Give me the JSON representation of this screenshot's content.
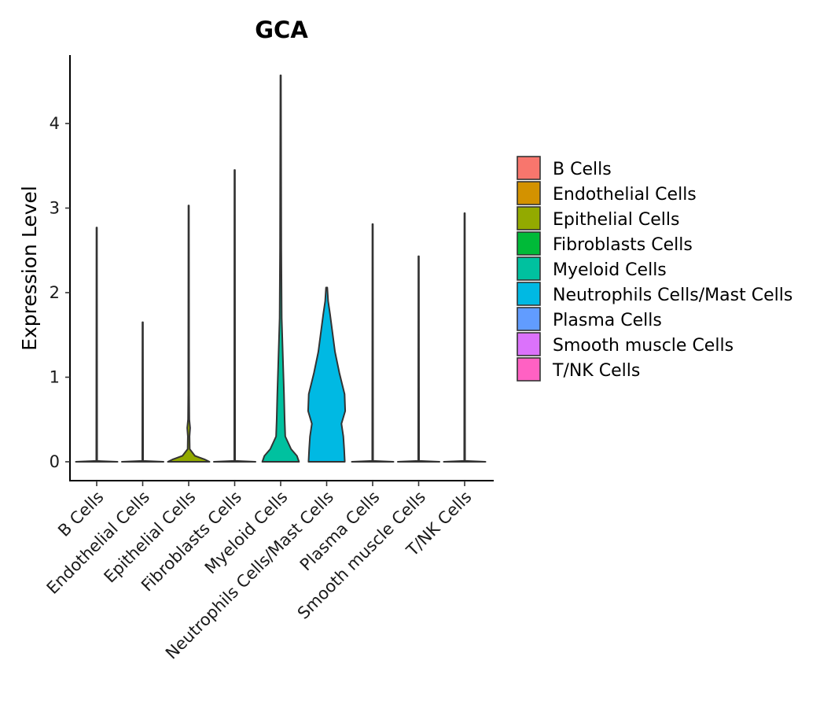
{
  "chart_data": {
    "type": "violin",
    "title": "GCA",
    "xlabel": "",
    "ylabel": "Expression Level",
    "ylim": [
      -0.22,
      4.8
    ],
    "yticks": [
      0,
      1,
      2,
      3,
      4
    ],
    "categories": [
      "B Cells",
      "Endothelial Cells",
      "Epithelial Cells",
      "Fibroblasts Cells",
      "Myeloid Cells",
      "Neutrophils Cells/Mast Cells",
      "Plasma Cells",
      "Smooth muscle Cells",
      "T/NK Cells"
    ],
    "legend": {
      "placement": "right",
      "entries": [
        "B Cells",
        "Endothelial Cells",
        "Epithelial Cells",
        "Fibroblasts Cells",
        "Myeloid Cells",
        "Neutrophils Cells/Mast Cells",
        "Plasma Cells",
        "Smooth muscle Cells",
        "T/NK Cells"
      ]
    },
    "colors": [
      "#F8766D",
      "#D39200",
      "#93AA00",
      "#00BA38",
      "#00C19F",
      "#00B9E3",
      "#619CFF",
      "#DB72FB",
      "#FF61C3"
    ],
    "series": [
      {
        "name": "B Cells",
        "max": 2.77,
        "density": [
          [
            0,
            1.0
          ],
          [
            0.01,
            0.02
          ],
          [
            2.77,
            0.012
          ]
        ]
      },
      {
        "name": "Endothelial Cells",
        "max": 1.65,
        "density": [
          [
            0,
            1.0
          ],
          [
            0.01,
            0.02
          ],
          [
            1.65,
            0.012
          ]
        ]
      },
      {
        "name": "Epithelial Cells",
        "max": 3.03,
        "density": [
          [
            0,
            1.0
          ],
          [
            0.03,
            0.75
          ],
          [
            0.07,
            0.3
          ],
          [
            0.15,
            0.05
          ],
          [
            0.3,
            0.04
          ],
          [
            0.4,
            0.07
          ],
          [
            0.5,
            0.03
          ],
          [
            0.8,
            0.02
          ],
          [
            3.03,
            0.012
          ]
        ]
      },
      {
        "name": "Fibroblasts Cells",
        "max": 3.45,
        "density": [
          [
            0,
            1.0
          ],
          [
            0.01,
            0.02
          ],
          [
            3.45,
            0.012
          ]
        ]
      },
      {
        "name": "Myeloid Cells",
        "max": 4.57,
        "density": [
          [
            0,
            0.88
          ],
          [
            0.07,
            0.78
          ],
          [
            0.15,
            0.5
          ],
          [
            0.3,
            0.22
          ],
          [
            0.5,
            0.19
          ],
          [
            0.8,
            0.16
          ],
          [
            1.2,
            0.11
          ],
          [
            1.7,
            0.05
          ],
          [
            2.5,
            0.03
          ],
          [
            4.57,
            0.012
          ]
        ]
      },
      {
        "name": "Neutrophils Cells/Mast Cells",
        "max": 2.06,
        "density": [
          [
            0,
            0.87
          ],
          [
            0.15,
            0.84
          ],
          [
            0.3,
            0.8
          ],
          [
            0.45,
            0.71
          ],
          [
            0.6,
            0.89
          ],
          [
            0.8,
            0.86
          ],
          [
            1.05,
            0.61
          ],
          [
            1.3,
            0.4
          ],
          [
            1.6,
            0.24
          ],
          [
            1.75,
            0.16
          ],
          [
            1.9,
            0.07
          ],
          [
            2.06,
            0.03
          ]
        ]
      },
      {
        "name": "Plasma Cells",
        "max": 2.81,
        "density": [
          [
            0,
            1.0
          ],
          [
            0.01,
            0.02
          ],
          [
            2.81,
            0.012
          ]
        ]
      },
      {
        "name": "Smooth muscle Cells",
        "max": 2.43,
        "density": [
          [
            0,
            1.0
          ],
          [
            0.01,
            0.02
          ],
          [
            2.43,
            0.012
          ]
        ]
      },
      {
        "name": "T/NK Cells",
        "max": 2.94,
        "density": [
          [
            0,
            1.0
          ],
          [
            0.01,
            0.02
          ],
          [
            2.94,
            0.012
          ]
        ]
      }
    ]
  }
}
